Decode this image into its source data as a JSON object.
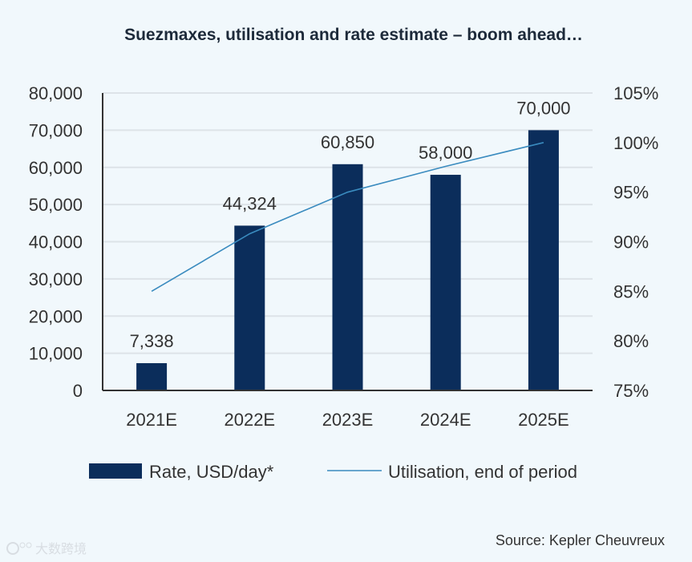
{
  "chart_data": {
    "type": "bar",
    "title": "Suezmaxes, utilisation and rate estimate – boom ahead…",
    "categories": [
      "2021E",
      "2022E",
      "2023E",
      "2024E",
      "2025E"
    ],
    "series": [
      {
        "name": "Rate, USD/day*",
        "type": "bar",
        "axis": "left",
        "values": [
          7338,
          44324,
          60850,
          58000,
          70000
        ],
        "labels": [
          "7,338",
          "44,324",
          "60,850",
          "58,000",
          "70,000"
        ],
        "color": "#0b2d5b"
      },
      {
        "name": "Utilisation, end of period",
        "type": "line",
        "axis": "right",
        "values": [
          85,
          90.8,
          95,
          97.6,
          100
        ],
        "color": "#3a8bbf"
      }
    ],
    "left_axis": {
      "ylim": [
        0,
        80000
      ],
      "ticks": [
        "0",
        "10,000",
        "20,000",
        "30,000",
        "40,000",
        "50,000",
        "60,000",
        "70,000",
        "80,000"
      ]
    },
    "right_axis": {
      "ylim": [
        75,
        105
      ],
      "ticks": [
        "75%",
        "80%",
        "85%",
        "90%",
        "95%",
        "100%",
        "105%"
      ]
    },
    "grid": true,
    "legend": "bottom",
    "source": "Source: Kepler Cheuvreux",
    "watermark": "大数跨境"
  }
}
